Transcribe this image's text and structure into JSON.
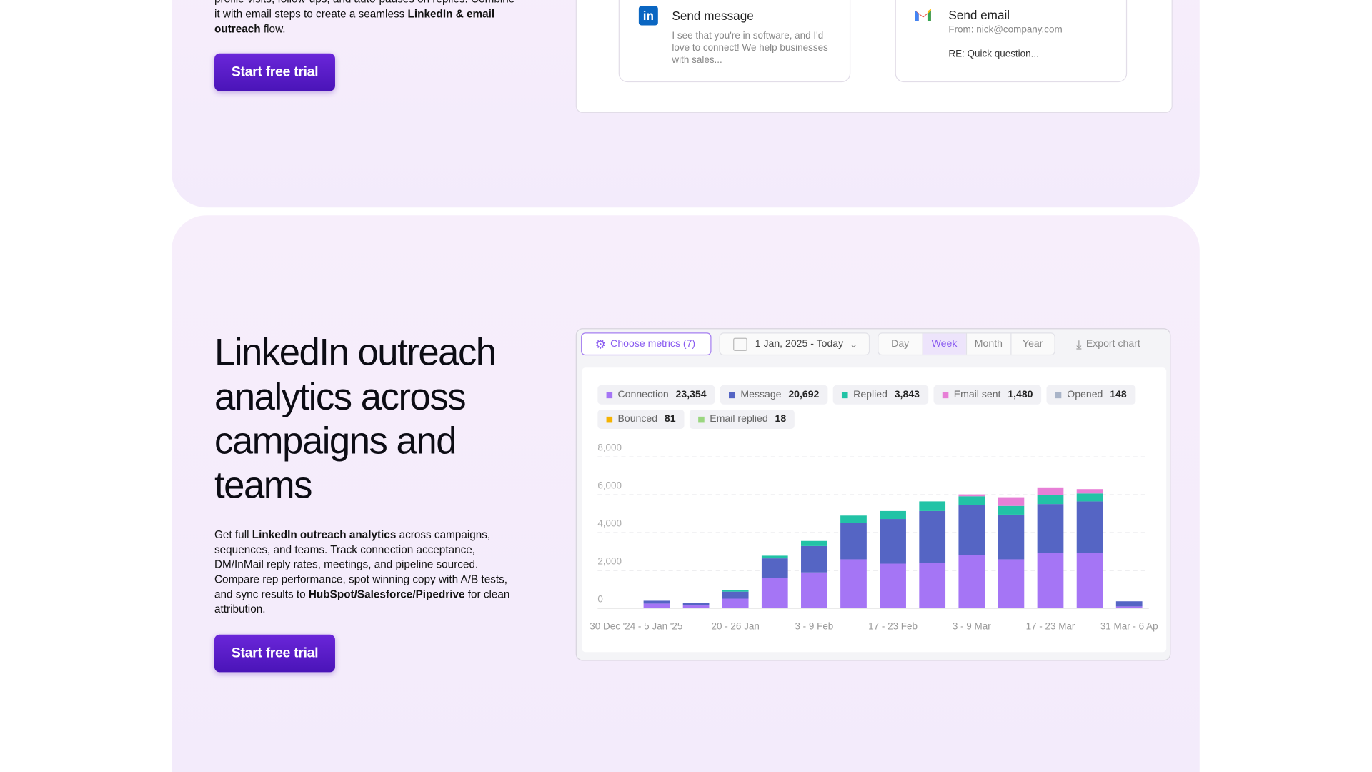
{
  "top_section": {
    "paragraph": [
      {
        "text": "profile visits, follow-ups, and auto-pauses on replies. Combine it with email steps to create a seamless ",
        "bold": false
      },
      {
        "text": "LinkedIn & email outreach",
        "bold": true
      },
      {
        "text": " flow.",
        "bold": false
      }
    ],
    "button": "Start free trial",
    "cards": [
      {
        "title": "Send message",
        "body": "I see that you're in software, and I'd love to connect! We help businesses with sales..."
      },
      {
        "title": "Send email",
        "from": "From: nick@company.com",
        "subject": "RE: Quick question..."
      }
    ]
  },
  "analytics_section": {
    "title": "LinkedIn outreach analytics across campaigns and teams",
    "paragraph": [
      {
        "text": "Get full ",
        "bold": false
      },
      {
        "text": "LinkedIn outreach analytics",
        "bold": true
      },
      {
        "text": " across campaigns, sequences, and teams. Track connection acceptance, DM/InMail reply rates, meetings, and pipeline sourced. Compare rep performance, spot winning copy with A/B tests, and sync results to ",
        "bold": false
      },
      {
        "text": "HubSpot/Salesforce/Pipedrive",
        "bold": true
      },
      {
        "text": " for clean attribution.",
        "bold": false
      }
    ],
    "button": "Start free trial"
  },
  "toolbar": {
    "metrics_button": "Choose metrics (7)",
    "date_range": "1 Jan, 2025 - Today",
    "periods": [
      "Day",
      "Week",
      "Month",
      "Year"
    ],
    "active_period": "Week",
    "export": "Export chart"
  },
  "chart_data": {
    "type": "stacked-bar",
    "categories": [
      "30 Dec '24 - 5 Jan '25",
      null,
      null,
      "20 - 26 Jan",
      null,
      "3 - 9 Feb",
      null,
      "17 - 23 Feb",
      null,
      "3 - 9 Mar",
      null,
      "17 - 23 Mar",
      null,
      "31 Mar - 6 Ap"
    ],
    "ylim": [
      0,
      8000
    ],
    "yticks": [
      0,
      {
        "value": 2000,
        "label": "2,000"
      },
      {
        "value": 4000,
        "label": "4,000"
      },
      {
        "value": 6000,
        "label": "6,000"
      },
      {
        "value": 8000,
        "label": "8,000"
      }
    ],
    "grid": true,
    "series": [
      {
        "name": "Connection",
        "total": "23,354",
        "color": "#a575f5",
        "values": [
          0,
          250,
          150,
          510,
          1620,
          1900,
          2590,
          2360,
          2410,
          2820,
          2590,
          2920,
          2920,
          100
        ]
      },
      {
        "name": "Message",
        "total": "20,692",
        "color": "#5565c4",
        "values": [
          0,
          150,
          150,
          370,
          1020,
          1390,
          1940,
          2360,
          2730,
          2640,
          2360,
          2590,
          2730,
          270
        ]
      },
      {
        "name": "Replied",
        "total": "3,843",
        "color": "#22c3a6",
        "values": [
          0,
          0,
          0,
          90,
          140,
          270,
          370,
          420,
          510,
          460,
          460,
          460,
          420,
          0
        ]
      },
      {
        "name": "Email sent",
        "total": "1,480",
        "color": "#e77fd6",
        "values": [
          0,
          0,
          0,
          0,
          0,
          0,
          0,
          0,
          0,
          100,
          460,
          420,
          230,
          0
        ]
      },
      {
        "name": "Opened",
        "total": "148",
        "color": "#a9b4c8",
        "values": [
          0,
          0,
          0,
          0,
          0,
          0,
          0,
          0,
          0,
          0,
          0,
          0,
          0,
          0
        ]
      },
      {
        "name": "Bounced",
        "total": "81",
        "color": "#f5b301",
        "values": [
          0,
          0,
          0,
          0,
          0,
          0,
          0,
          0,
          0,
          0,
          0,
          0,
          0,
          0
        ]
      },
      {
        "name": "Email replied",
        "total": "18",
        "color": "#9ad67f",
        "values": [
          0,
          0,
          0,
          0,
          0,
          0,
          0,
          0,
          0,
          0,
          0,
          0,
          0,
          0
        ]
      }
    ]
  }
}
